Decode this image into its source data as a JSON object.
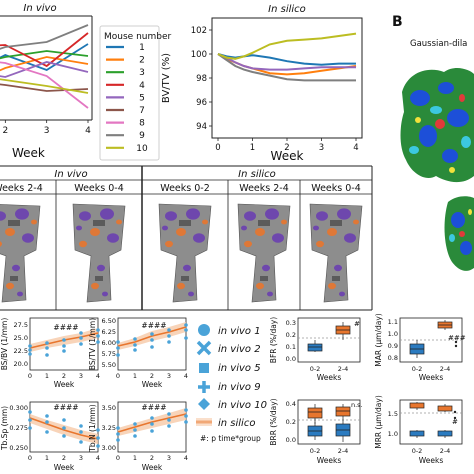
{
  "panel_b_label": "B",
  "panel_b_caption": "Gaussian-dila",
  "plot_in_vivo": {
    "title": "In vivo",
    "xlabel": "Week",
    "x_ticks": [
      "2",
      "3",
      "4"
    ],
    "legend_title": "Mouse number",
    "legend": [
      {
        "label": "1",
        "color": "#1f77b4"
      },
      {
        "label": "2",
        "color": "#ff7f0e"
      },
      {
        "label": "3",
        "color": "#2ca02c"
      },
      {
        "label": "4",
        "color": "#d62728"
      },
      {
        "label": "5",
        "color": "#9467bd"
      },
      {
        "label": "7",
        "color": "#8c564b"
      },
      {
        "label": "8",
        "color": "#e377c2"
      },
      {
        "label": "9",
        "color": "#7f7f7f"
      },
      {
        "label": "10",
        "color": "#bcbd22"
      }
    ]
  },
  "plot_in_silico": {
    "title": "In silico",
    "ylabel": "BV/TV (%)",
    "xlabel": "Week",
    "x_ticks": [
      "0",
      "1",
      "2",
      "3",
      "4"
    ],
    "y_ticks": [
      "94",
      "96",
      "98",
      "100",
      "102"
    ]
  },
  "table": {
    "group_in_vivo": "In vivo",
    "group_in_silico": "In silico",
    "columns": [
      "Weeks 2-4",
      "Weeks 0-4",
      "Weeks 0-2",
      "Weeks 2-4",
      "Weeks 0-4"
    ]
  },
  "small_plots": {
    "bsbv": {
      "ylabel": "BS/BV (1/mm)",
      "y_ticks": [
        "20.0",
        "22.5",
        "25.0",
        "27.5"
      ],
      "x_ticks": [
        "0",
        "1",
        "2",
        "3",
        "4"
      ],
      "xlabel": "Week",
      "sig": "####"
    },
    "bstv": {
      "ylabel": "BS/TV (1/mm)",
      "y_ticks": [
        "5.50",
        "5.75",
        "6.00",
        "6.25",
        "6.50"
      ],
      "x_ticks": [
        "0",
        "1",
        "2",
        "3",
        "4"
      ],
      "xlabel": "Week",
      "sig": "####"
    },
    "tbsp": {
      "ylabel": "Tb.Sp (mm)",
      "y_ticks": [
        "0.250",
        "0.275",
        "0.300"
      ],
      "x_ticks": [
        "0",
        "1",
        "2",
        "3",
        "4"
      ],
      "xlabel": "Week",
      "sig": "####"
    },
    "tbn": {
      "ylabel": "Tb.N (1/mm)",
      "y_ticks": [
        "3.00",
        "3.25",
        "3.50"
      ],
      "x_ticks": [
        "0",
        "1",
        "2",
        "3",
        "4"
      ],
      "xlabel": "Week",
      "sig": "####"
    }
  },
  "marker_legend": {
    "items": [
      "in vivo 1",
      "in vivo 2",
      "in vivo 5",
      "in vivo 9",
      "in vivo 10",
      "in silico"
    ],
    "note": "#: p time*group"
  },
  "box_plots": {
    "bfr": {
      "ylabel": "BFR (%/day)",
      "y_ticks": [
        "0.0",
        "0.1",
        "0.2",
        "0.3"
      ],
      "categories": [
        "0-2",
        "2-4"
      ],
      "xlabel": "Weeks",
      "sig": "#"
    },
    "mar": {
      "ylabel": "MAR (μm/day)",
      "y_ticks": [
        "0.8",
        "0.9",
        "1.0",
        "1.1"
      ],
      "categories": [
        "0-2",
        "2-4"
      ],
      "xlabel": "Weeks",
      "sig": "###"
    },
    "brr": {
      "ylabel": "BRR (%/day)",
      "y_ticks": [
        "0.0",
        "0.2",
        "0.4"
      ],
      "categories": [
        "0-2",
        "2-4"
      ],
      "xlabel": "Weeks",
      "sig": "n.s."
    },
    "mrr": {
      "ylabel": "MRR (μm/day)",
      "y_ticks": [
        "1.0",
        "1.5"
      ],
      "categories": [
        "0-2",
        "2-4"
      ],
      "xlabel": "Weeks",
      "sig": "#"
    }
  },
  "chart_data": [
    {
      "type": "line",
      "title": "In vivo",
      "xlabel": "Week",
      "x": [
        1,
        2,
        3,
        4
      ],
      "xlim": [
        1,
        4
      ],
      "ylim": [
        0,
        10
      ],
      "series": [
        {
          "name": "1",
          "values": [
            4.2,
            6.3,
            4.8,
            7.4
          ]
        },
        {
          "name": "2",
          "values": [
            3.2,
            5.0,
            6.1,
            5.4
          ]
        },
        {
          "name": "3",
          "values": [
            5.1,
            6.1,
            6.7,
            6.2
          ]
        },
        {
          "name": "4",
          "values": [
            7.1,
            7.3,
            5.2,
            8.5
          ]
        },
        {
          "name": "5",
          "values": [
            4.8,
            4.1,
            5.6,
            4.6
          ]
        },
        {
          "name": "7",
          "values": [
            3.8,
            3.3,
            2.7,
            2.9
          ]
        },
        {
          "name": "8",
          "values": [
            6.0,
            5.5,
            4.2,
            1.0
          ]
        },
        {
          "name": "9",
          "values": [
            5.7,
            7.1,
            7.6,
            9.3
          ]
        },
        {
          "name": "10",
          "values": [
            4.4,
            3.8,
            3.2,
            2.5
          ]
        }
      ]
    },
    {
      "type": "line",
      "title": "In silico",
      "xlabel": "Week",
      "ylabel": "BV/TV (%)",
      "x": [
        0,
        0.25,
        0.5,
        0.75,
        1,
        1.5,
        2,
        2.5,
        3,
        3.5,
        4
      ],
      "xlim": [
        0,
        4
      ],
      "ylim": [
        93,
        103
      ],
      "series": [
        {
          "name": "1",
          "values": [
            100,
            99.8,
            99.7,
            99.8,
            99.9,
            99.7,
            99.4,
            99.2,
            99.1,
            99.2,
            99.2
          ]
        },
        {
          "name": "2",
          "values": [
            100,
            99.6,
            99.3,
            99.0,
            98.8,
            98.4,
            98.3,
            98.4,
            98.6,
            98.8,
            99.0
          ]
        },
        {
          "name": "5",
          "values": [
            100,
            99.7,
            99.3,
            99.0,
            98.8,
            98.7,
            98.7,
            98.8,
            98.9,
            98.9,
            98.9
          ]
        },
        {
          "name": "9",
          "values": [
            100,
            99.5,
            99.0,
            98.7,
            98.5,
            98.2,
            97.9,
            97.8,
            97.8,
            97.8,
            97.8
          ]
        },
        {
          "name": "10",
          "values": [
            100,
            99.7,
            99.6,
            99.8,
            100.1,
            100.8,
            101.1,
            101.2,
            101.3,
            101.5,
            101.7
          ]
        }
      ]
    }
  ]
}
